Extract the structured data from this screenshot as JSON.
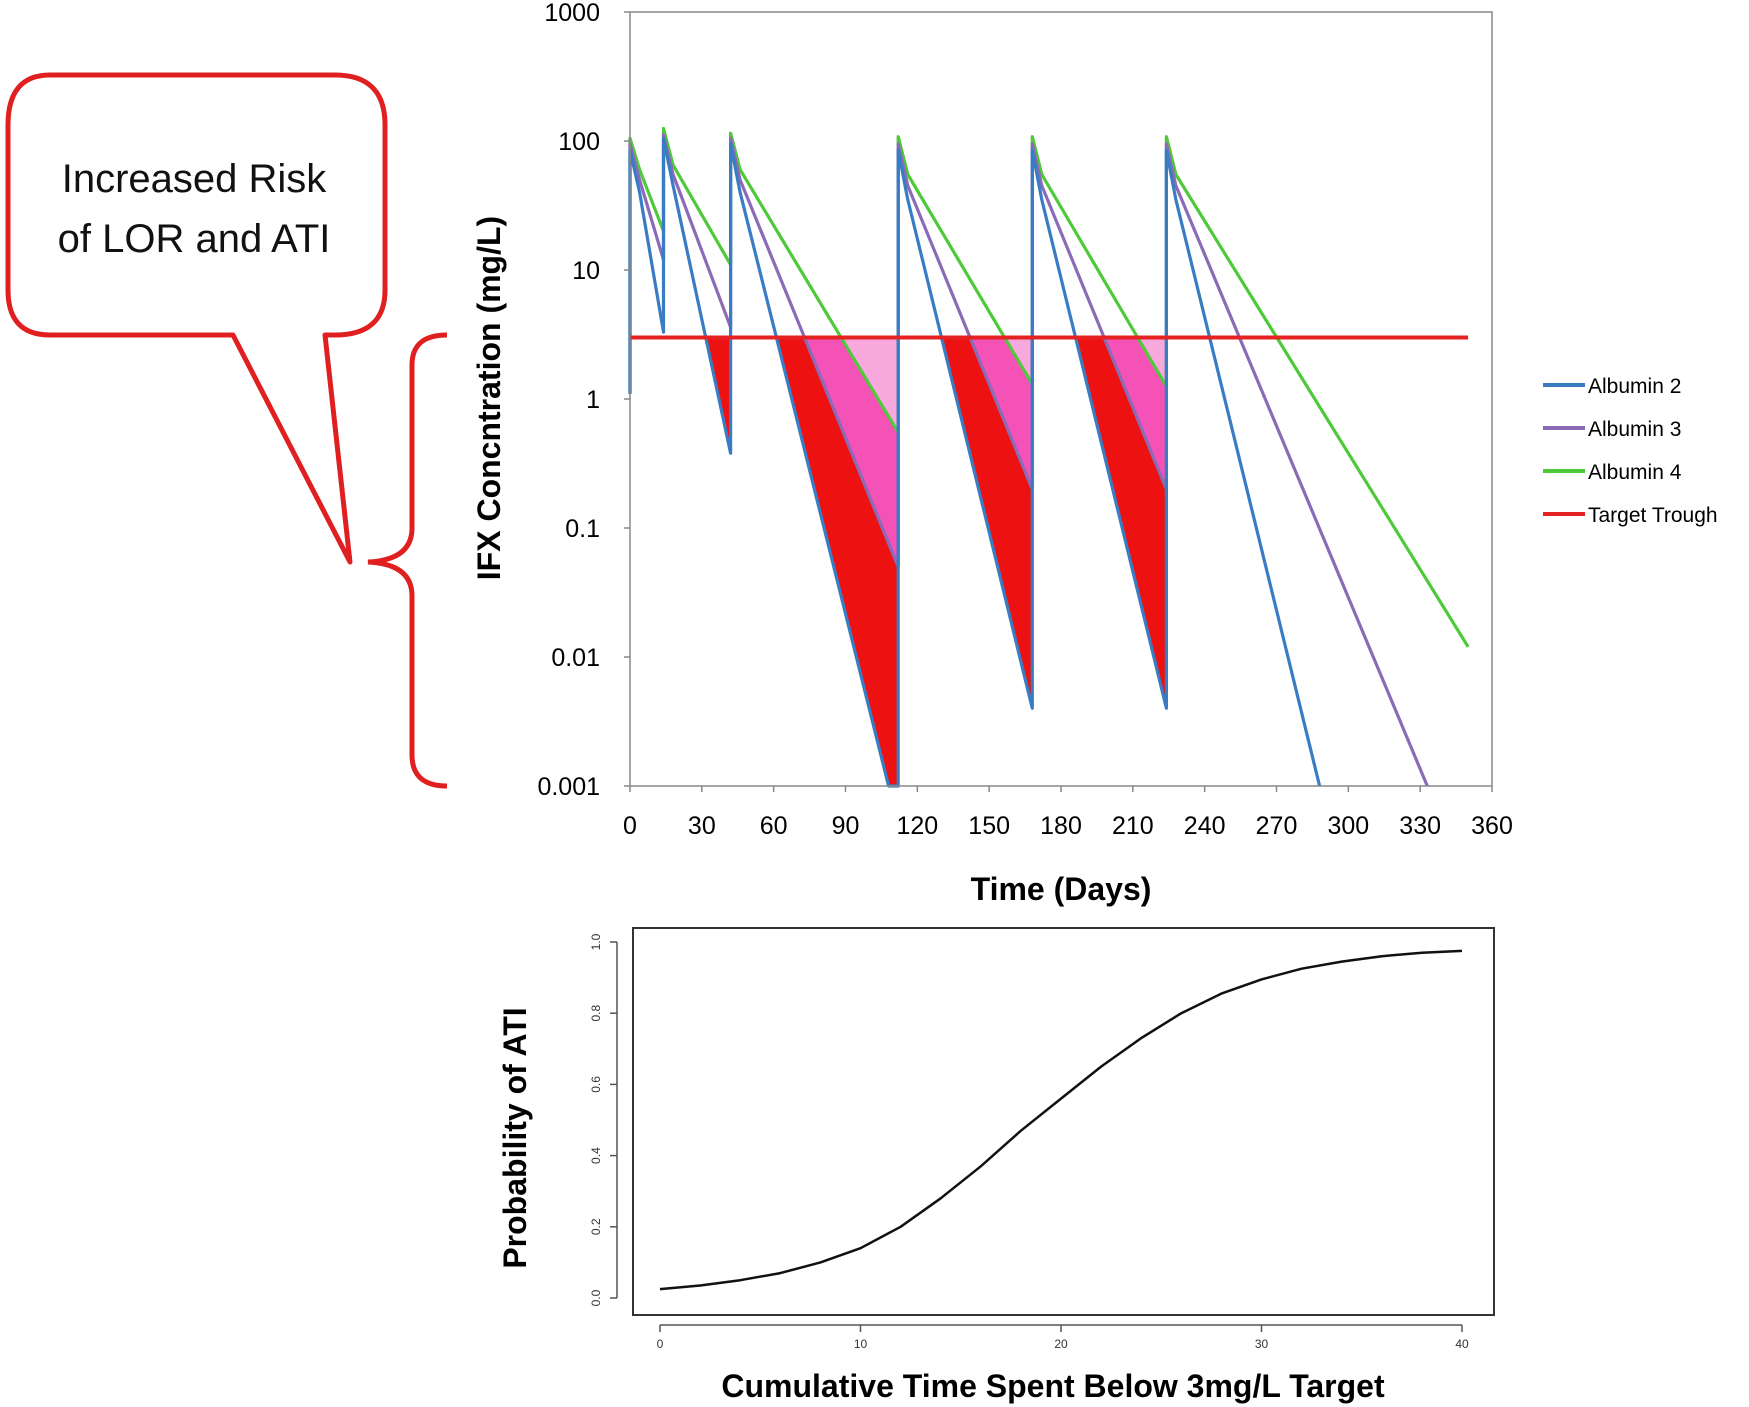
{
  "callout": {
    "line1": "Increased Risk",
    "line2": "of LOR and ATI",
    "color": "#e02020"
  },
  "chart_data": [
    {
      "type": "line",
      "title": "",
      "xlabel": "Time (Days)",
      "ylabel": "IFX Concntration (mg/L)",
      "yscale": "log",
      "xlim": [
        0,
        360
      ],
      "ylim": [
        0.001,
        1000
      ],
      "xticks": [
        0,
        30,
        60,
        90,
        120,
        150,
        180,
        210,
        240,
        270,
        300,
        330,
        360
      ],
      "yticks": [
        {
          "value": 0.001,
          "label": "0.001"
        },
        {
          "value": 0.01,
          "label": "0.01"
        },
        {
          "value": 0.1,
          "label": "0.1"
        },
        {
          "value": 1,
          "label": "1"
        },
        {
          "value": 10,
          "label": "10"
        },
        {
          "value": 100,
          "label": "100"
        },
        {
          "value": 1000,
          "label": "1000"
        }
      ],
      "grid": false,
      "legend_position": "right",
      "series": [
        {
          "name": "Albumin 2",
          "color": "#3a7cc4",
          "points": [
            [
              0,
              1.1
            ],
            [
              0,
              85
            ],
            [
              4,
              40
            ],
            [
              14,
              3.3
            ],
            [
              14,
              105
            ],
            [
              18,
              45
            ],
            [
              42,
              0.38
            ],
            [
              42,
              95
            ],
            [
              46,
              40
            ],
            [
              108,
              0.0009
            ],
            [
              112,
              0.0009
            ],
            [
              112,
              85
            ],
            [
              116,
              35
            ],
            [
              168,
              0.004
            ],
            [
              168,
              85
            ],
            [
              172,
              35
            ],
            [
              224,
              0.004
            ],
            [
              224,
              85
            ],
            [
              228,
              35
            ],
            [
              288,
              0.001
            ]
          ]
        },
        {
          "name": "Albumin 3",
          "color": "#8b6bb8",
          "points": [
            [
              0,
              1.1
            ],
            [
              0,
              95
            ],
            [
              4,
              50
            ],
            [
              14,
              12
            ],
            [
              14,
              112
            ],
            [
              18,
              55
            ],
            [
              42,
              3.6
            ],
            [
              42,
              105
            ],
            [
              46,
              50
            ],
            [
              112,
              0.05
            ],
            [
              112,
              95
            ],
            [
              116,
              45
            ],
            [
              168,
              0.2
            ],
            [
              168,
              95
            ],
            [
              172,
              45
            ],
            [
              224,
              0.2
            ],
            [
              224,
              95
            ],
            [
              228,
              45
            ],
            [
              333,
              0.001
            ]
          ]
        },
        {
          "name": "Albumin 4",
          "color": "#4ec93a",
          "points": [
            [
              0,
              1.1
            ],
            [
              0,
              105
            ],
            [
              4,
              60
            ],
            [
              14,
              20
            ],
            [
              14,
              125
            ],
            [
              18,
              65
            ],
            [
              42,
              11
            ],
            [
              42,
              115
            ],
            [
              46,
              60
            ],
            [
              112,
              0.55
            ],
            [
              112,
              108
            ],
            [
              116,
              55
            ],
            [
              168,
              1.3
            ],
            [
              168,
              108
            ],
            [
              172,
              55
            ],
            [
              224,
              1.25
            ],
            [
              224,
              108
            ],
            [
              228,
              55
            ],
            [
              350,
              0.012
            ]
          ]
        },
        {
          "name": "Target Trough",
          "color": "#e52222",
          "points": [
            [
              0,
              3
            ],
            [
              350,
              3
            ]
          ]
        }
      ],
      "shaded_regions": [
        {
          "level": "below-target-albumin-2",
          "color": "#ee1111"
        },
        {
          "level": "below-target-albumin-3",
          "color": "#f552b8"
        },
        {
          "level": "below-target-albumin-4",
          "color": "#f7a8dc"
        }
      ]
    },
    {
      "type": "line",
      "title": "",
      "xlabel": "Cumulative Time Spent Below 3mg/L Target",
      "ylabel": "Probability of ATI",
      "xlim": [
        0,
        40
      ],
      "ylim": [
        0,
        1.0
      ],
      "xticks": [
        0,
        10,
        20,
        30,
        40
      ],
      "yticks": [
        {
          "value": 0.0,
          "label": "0.0"
        },
        {
          "value": 0.2,
          "label": "0.2"
        },
        {
          "value": 0.4,
          "label": "0.4"
        },
        {
          "value": 0.6,
          "label": "0.6"
        },
        {
          "value": 0.8,
          "label": "0.8"
        },
        {
          "value": 1.0,
          "label": "1.0"
        }
      ],
      "grid": false,
      "series": [
        {
          "color": "#111111",
          "x": [
            0,
            2,
            4,
            6,
            8,
            10,
            12,
            14,
            16,
            18,
            20,
            22,
            24,
            26,
            28,
            30,
            32,
            34,
            36,
            38,
            40
          ],
          "y": [
            0.025,
            0.035,
            0.05,
            0.07,
            0.1,
            0.14,
            0.2,
            0.28,
            0.37,
            0.47,
            0.56,
            0.65,
            0.73,
            0.8,
            0.855,
            0.895,
            0.925,
            0.945,
            0.96,
            0.97,
            0.975
          ]
        }
      ]
    }
  ]
}
